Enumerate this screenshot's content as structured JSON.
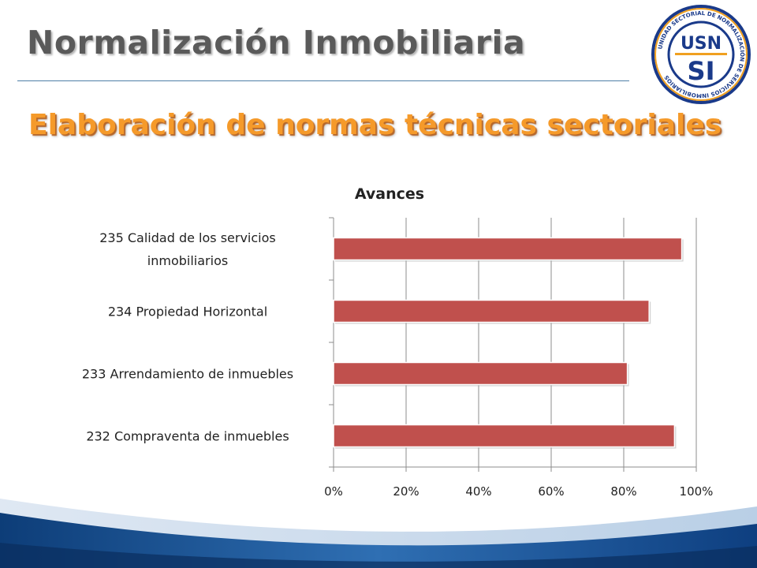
{
  "slide": {
    "title": "Normalización Inmobiliaria",
    "subtitle": "Elaboración de normas técnicas sectoriales"
  },
  "logo": {
    "top_text": "USN",
    "bottom_text": "SI",
    "ring_text": "UNIDAD SECTORIAL DE NORMALIZACIÓN DE SERVICIOS INMOBILIARIOS",
    "ring_color": "#1a3a8a",
    "accent_color": "#f0a020"
  },
  "colors": {
    "bar": "#c0504d",
    "subtitle": "#f59a2a",
    "title": "#5a5a5a"
  },
  "chart_data": {
    "type": "bar",
    "orientation": "horizontal",
    "title": "Avances",
    "categories": [
      "235 Calidad de los servicios inmobiliarios",
      "234 Propiedad Horizontal",
      "233 Arrendamiento de inmuebles",
      "232 Compraventa de inmuebles"
    ],
    "category_lines": [
      [
        "235 Calidad de los servicios",
        "inmobiliarios"
      ],
      [
        "234 Propiedad Horizontal"
      ],
      [
        "233 Arrendamiento de inmuebles"
      ],
      [
        "232 Compraventa de inmuebles"
      ]
    ],
    "values": [
      0.96,
      0.87,
      0.81,
      0.94
    ],
    "xlim": [
      0,
      1
    ],
    "xticks": [
      0,
      0.2,
      0.4,
      0.6,
      0.8,
      1.0
    ],
    "xtick_labels": [
      "0%",
      "20%",
      "40%",
      "60%",
      "80%",
      "100%"
    ],
    "grid": "vertical",
    "legend": "none"
  }
}
